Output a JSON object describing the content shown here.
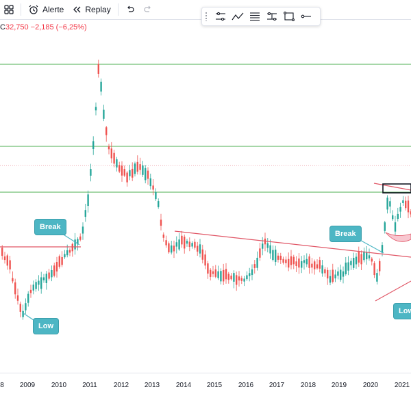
{
  "toolbar": {
    "layout_icon": "grid-icon",
    "alert_label": "Alerte",
    "replay_label": "Replay",
    "undo_icon": "undo-icon",
    "redo_icon": "redo-icon"
  },
  "drawing_toolbar": {
    "tools": [
      "settings-lines-icon",
      "trend-zigzag-icon",
      "text-lines-icon",
      "range-icon",
      "rectangle-icon",
      "line-icon"
    ]
  },
  "legend": {
    "prefix": "C",
    "close": "32,750",
    "change": "−2,185 (−6,25%)"
  },
  "callouts": {
    "break_left": "Break",
    "low_left": "Low",
    "break_right": "Break",
    "low_right": "Low"
  },
  "colors": {
    "up": "#26a69a",
    "down": "#ef5350",
    "green_line": "#4caf50",
    "trend_line": "#e05565",
    "callout": "#4db6c4"
  },
  "xaxis": {
    "labels": [
      "8",
      "2009",
      "2010",
      "2011",
      "2012",
      "2013",
      "2014",
      "2015",
      "2016",
      "2017",
      "2018",
      "2019",
      "2020",
      "2021"
    ]
  }
}
